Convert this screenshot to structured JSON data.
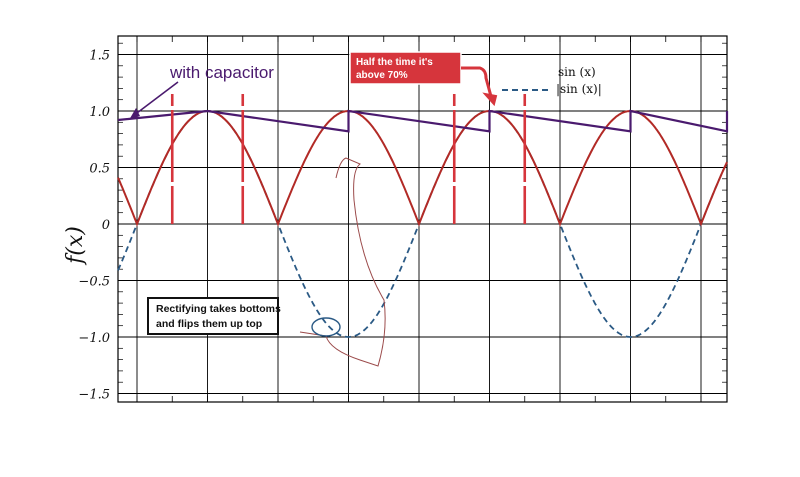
{
  "chart_data": {
    "type": "line",
    "title": "",
    "xlabel": "",
    "ylabel": "f(x)",
    "ylim": [
      -1.65,
      1.65
    ],
    "yticks": [
      "1.5",
      "1.0",
      "0.5",
      "0",
      "−0.5",
      "−1.0",
      "−1.5"
    ],
    "ytick_values": [
      1.5,
      1.0,
      0.5,
      0,
      -0.5,
      -1.0,
      -1.5
    ],
    "grid": true,
    "legend": {
      "placement": "top-right",
      "entries": [
        "sin (x)",
        "|sin (x)|"
      ]
    },
    "series": [
      {
        "name": "sin (x)",
        "style": "dashed",
        "color": "#2b5a85",
        "function": "sin"
      },
      {
        "name": "|sin (x)|",
        "style": "solid",
        "color": "#b22a26",
        "function": "abs_sin"
      },
      {
        "style": "solid",
        "color": "#4a1a6e",
        "label": "with capacitor",
        "x_half_periods": [
          -0.3,
          0.5,
          0.5,
          1.5,
          1.5,
          2.5,
          2.5,
          3.5,
          3.5,
          4.5,
          4.5,
          5.3
        ],
        "y": [
          0.92,
          1.0,
          1.0,
          0.82,
          1.0,
          0.82,
          1.0,
          0.82,
          1.0,
          0.82,
          1.0,
          0.87
        ]
      }
    ],
    "x_range_half_periods": [
      -0.13,
      5.13
    ],
    "annotations": {
      "capacitor": "with capacitor",
      "half_time": "Half the time it's above 70%",
      "half_time_lines": [
        "Half the time it's",
        "above 70%"
      ],
      "rectify_lines": [
        "Rectifying takes bottoms",
        "and flips them up top"
      ]
    },
    "threshold_markers": [
      0.25,
      0.75,
      2.25,
      2.75
    ]
  },
  "colors": {
    "sin": "#2b5a85",
    "abs": "#b22a26",
    "capacitor": "#4a1a6e",
    "annotation_red": "#d6353c",
    "grid": "#000000"
  }
}
